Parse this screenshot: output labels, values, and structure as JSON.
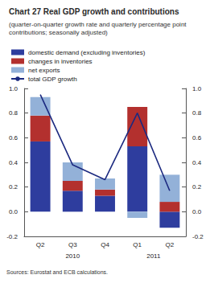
{
  "chart_data": {
    "type": "bar",
    "title": "Chart 27 Real GDP growth and contributions",
    "subtitle": "(quarter-on-quarter growth rate and quarterly percentage point contributions; seasonally adjusted)",
    "categories": [
      "Q2",
      "Q3",
      "Q4",
      "Q1",
      "Q2"
    ],
    "category_groups": [
      {
        "label": "2010",
        "count": 3
      },
      {
        "label": "2011",
        "count": 2
      }
    ],
    "series": [
      {
        "name": "domestic demand (excluding inventories)",
        "color": "#2e3d9e",
        "values": [
          0.57,
          0.17,
          0.13,
          0.53,
          -0.13
        ]
      },
      {
        "name": "changes in inventories",
        "color": "#b3302e",
        "values": [
          0.21,
          0.08,
          0.05,
          0.32,
          0.08
        ]
      },
      {
        "name": "net exports",
        "color": "#93b1d8",
        "values": [
          0.15,
          0.15,
          0.09,
          -0.05,
          0.22
        ]
      },
      {
        "name": "total GDP growth",
        "color": "#1c2a80",
        "type": "line",
        "values": [
          0.95,
          0.38,
          0.26,
          0.8,
          0.17
        ]
      }
    ],
    "stacked": true,
    "ylim": [
      -0.2,
      1.0
    ],
    "yticks": [
      -0.2,
      {
        "value": 0,
        "label": "0.0"
      },
      0.2,
      0.4,
      0.6,
      0.8,
      {
        "value": 1,
        "label": "1.0"
      }
    ],
    "y2lim": [
      -0.2,
      1.0
    ],
    "y2ticks": [
      -0.2,
      {
        "value": 0,
        "label": "0.0"
      },
      0.2,
      0.4,
      0.6,
      0.8,
      {
        "value": 1,
        "label": "1.0"
      }
    ],
    "grid": false,
    "legend": "top",
    "source": "Sources: Eurostat and ECB calculations."
  }
}
